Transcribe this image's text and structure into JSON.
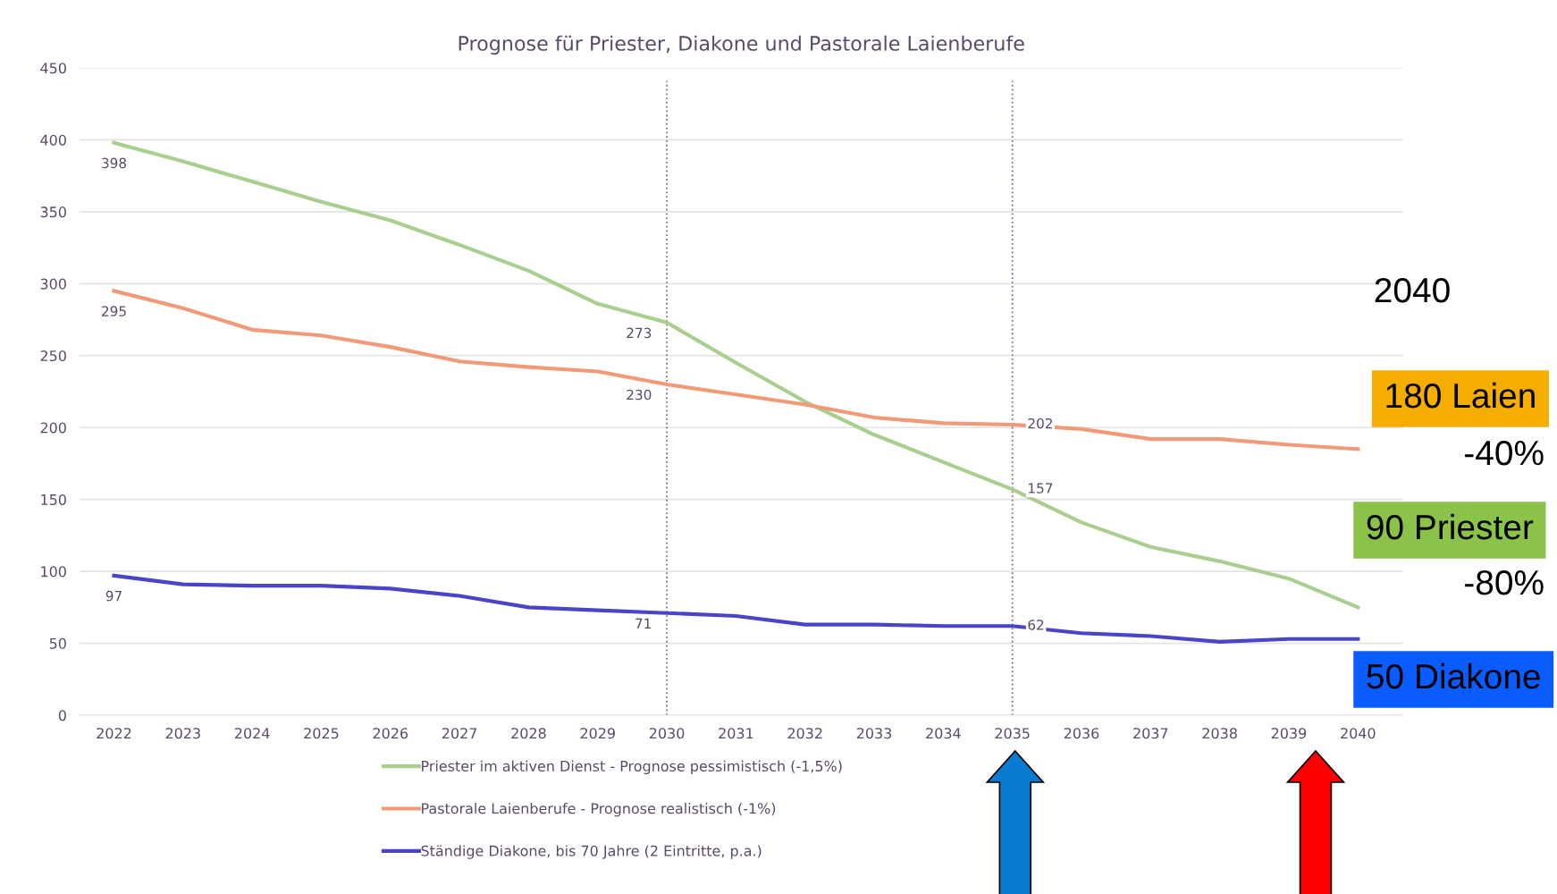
{
  "chart_data": {
    "type": "line",
    "title": "Prognose für Priester, Diakone und Pastorale Laienberufe",
    "categories": [
      "2022",
      "2023",
      "2024",
      "2025",
      "2026",
      "2027",
      "2028",
      "2029",
      "2030",
      "2031",
      "2032",
      "2033",
      "2034",
      "2035",
      "2036",
      "2037",
      "2038",
      "2039",
      "2040"
    ],
    "series": [
      {
        "name": "Priester im aktiven Dienst - Prognose pessimistisch (-1,5%)",
        "color": "#a9cf8f",
        "values": [
          398,
          385,
          371,
          357,
          344,
          327,
          309,
          286,
          273,
          245,
          218,
          195,
          176,
          157,
          134,
          117,
          107,
          95,
          75
        ],
        "value_labels": [
          "398",
          null,
          null,
          null,
          null,
          null,
          null,
          null,
          "273",
          null,
          null,
          null,
          null,
          "157",
          null,
          null,
          null,
          null,
          null
        ]
      },
      {
        "name": "Pastorale Laienberufe - Prognose realistisch (-1%)",
        "color": "#f09a78",
        "values": [
          295,
          283,
          268,
          264,
          256,
          246,
          242,
          239,
          230,
          223,
          216,
          207,
          203,
          202,
          199,
          192,
          192,
          188,
          185
        ],
        "value_labels": [
          "295",
          null,
          null,
          null,
          null,
          null,
          null,
          null,
          "230",
          null,
          null,
          null,
          null,
          "202",
          null,
          null,
          null,
          null,
          null
        ]
      },
      {
        "name": "Ständige Diakone, bis 70 Jahre (2 Eintritte, p.a.)",
        "color": "#4a45c8",
        "values": [
          97,
          91,
          90,
          90,
          88,
          83,
          75,
          73,
          71,
          69,
          63,
          63,
          62,
          62,
          57,
          55,
          51,
          53,
          53
        ],
        "value_labels": [
          "97",
          null,
          null,
          null,
          null,
          null,
          null,
          null,
          "71",
          null,
          null,
          null,
          null,
          "62",
          null,
          null,
          null,
          null,
          null
        ]
      }
    ],
    "ylim": [
      0,
      450
    ],
    "yticks": [
      0,
      50,
      100,
      150,
      200,
      250,
      300,
      350,
      400,
      450
    ],
    "grid": "y",
    "legend": "bottom",
    "ref_lines": [
      {
        "axis": "x",
        "value": "2030",
        "color": "#8a6a9a",
        "line_style": "dotted"
      },
      {
        "axis": "x",
        "value": "2035",
        "color": "#8a6a9a",
        "line_style": "dotted"
      }
    ],
    "annotations": [
      "2040",
      "180 Laien",
      "-40%",
      "90 Priester",
      "-80%",
      "50 Diakone"
    ]
  }
}
